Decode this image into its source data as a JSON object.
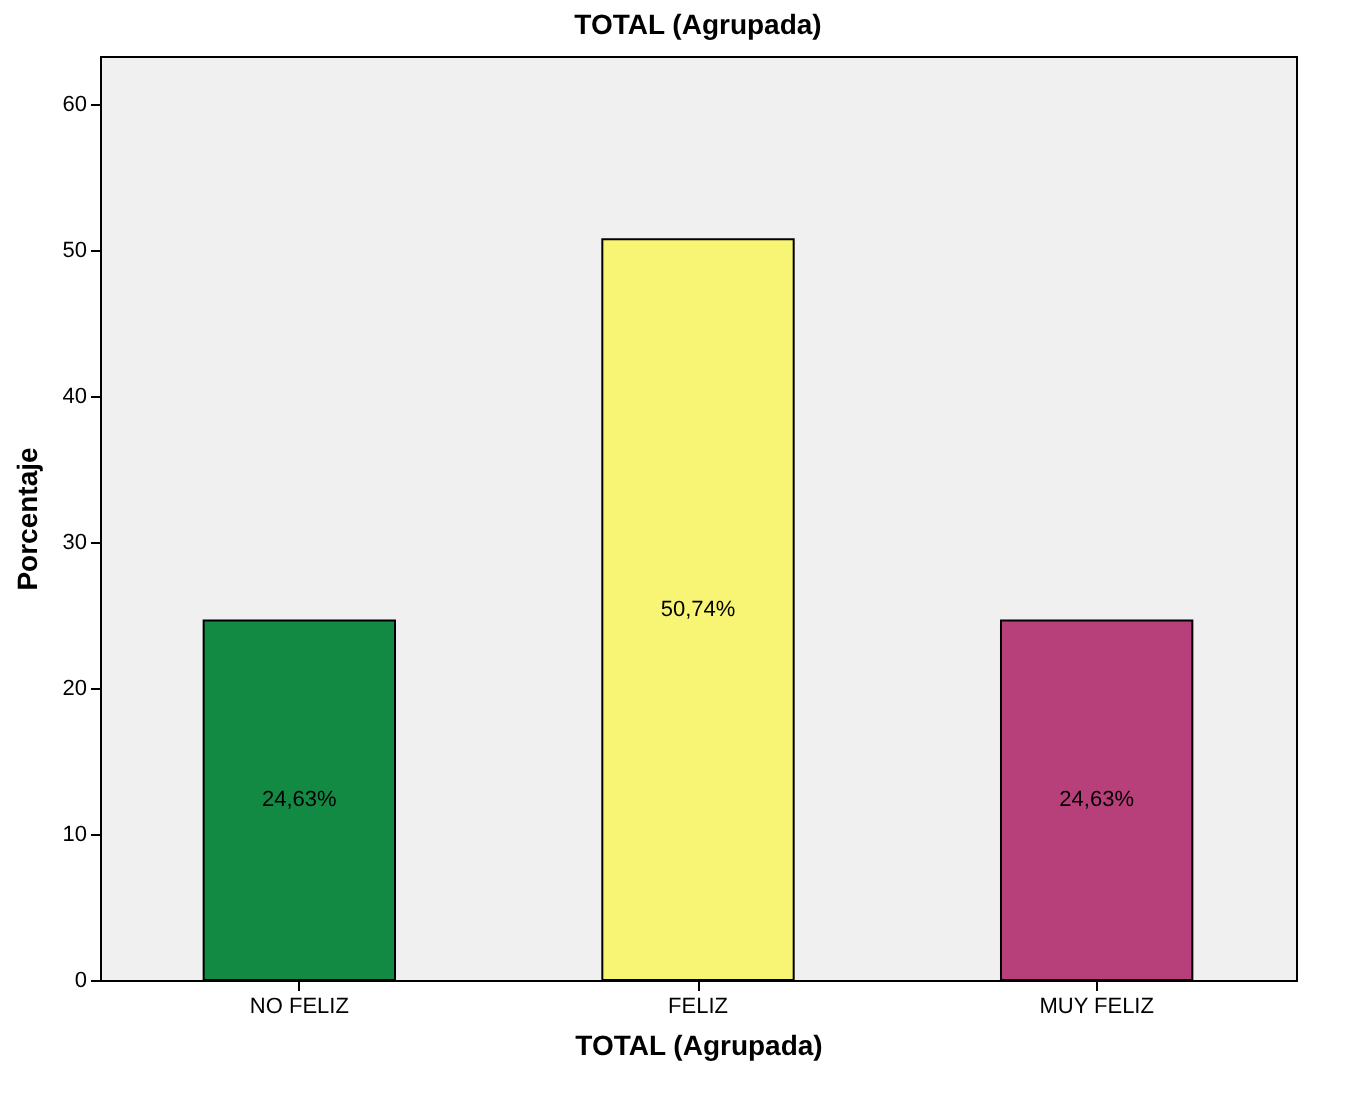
{
  "chart_data": {
    "type": "bar",
    "title": "TOTAL (Agrupada)",
    "xlabel": "TOTAL (Agrupada)",
    "ylabel": "Porcentaje",
    "categories": [
      "NO FELIZ",
      "FELIZ",
      "MUY FELIZ"
    ],
    "values": [
      24.63,
      50.74,
      24.63
    ],
    "colors": [
      "#128a44",
      "#f9f574",
      "#b8407a"
    ],
    "value_labels": [
      "24,63%",
      "50,74%",
      "24,63%"
    ],
    "ylim": [
      0,
      63.3
    ],
    "yticks": [
      0,
      10,
      20,
      30,
      40,
      50,
      60
    ],
    "grid": false
  }
}
